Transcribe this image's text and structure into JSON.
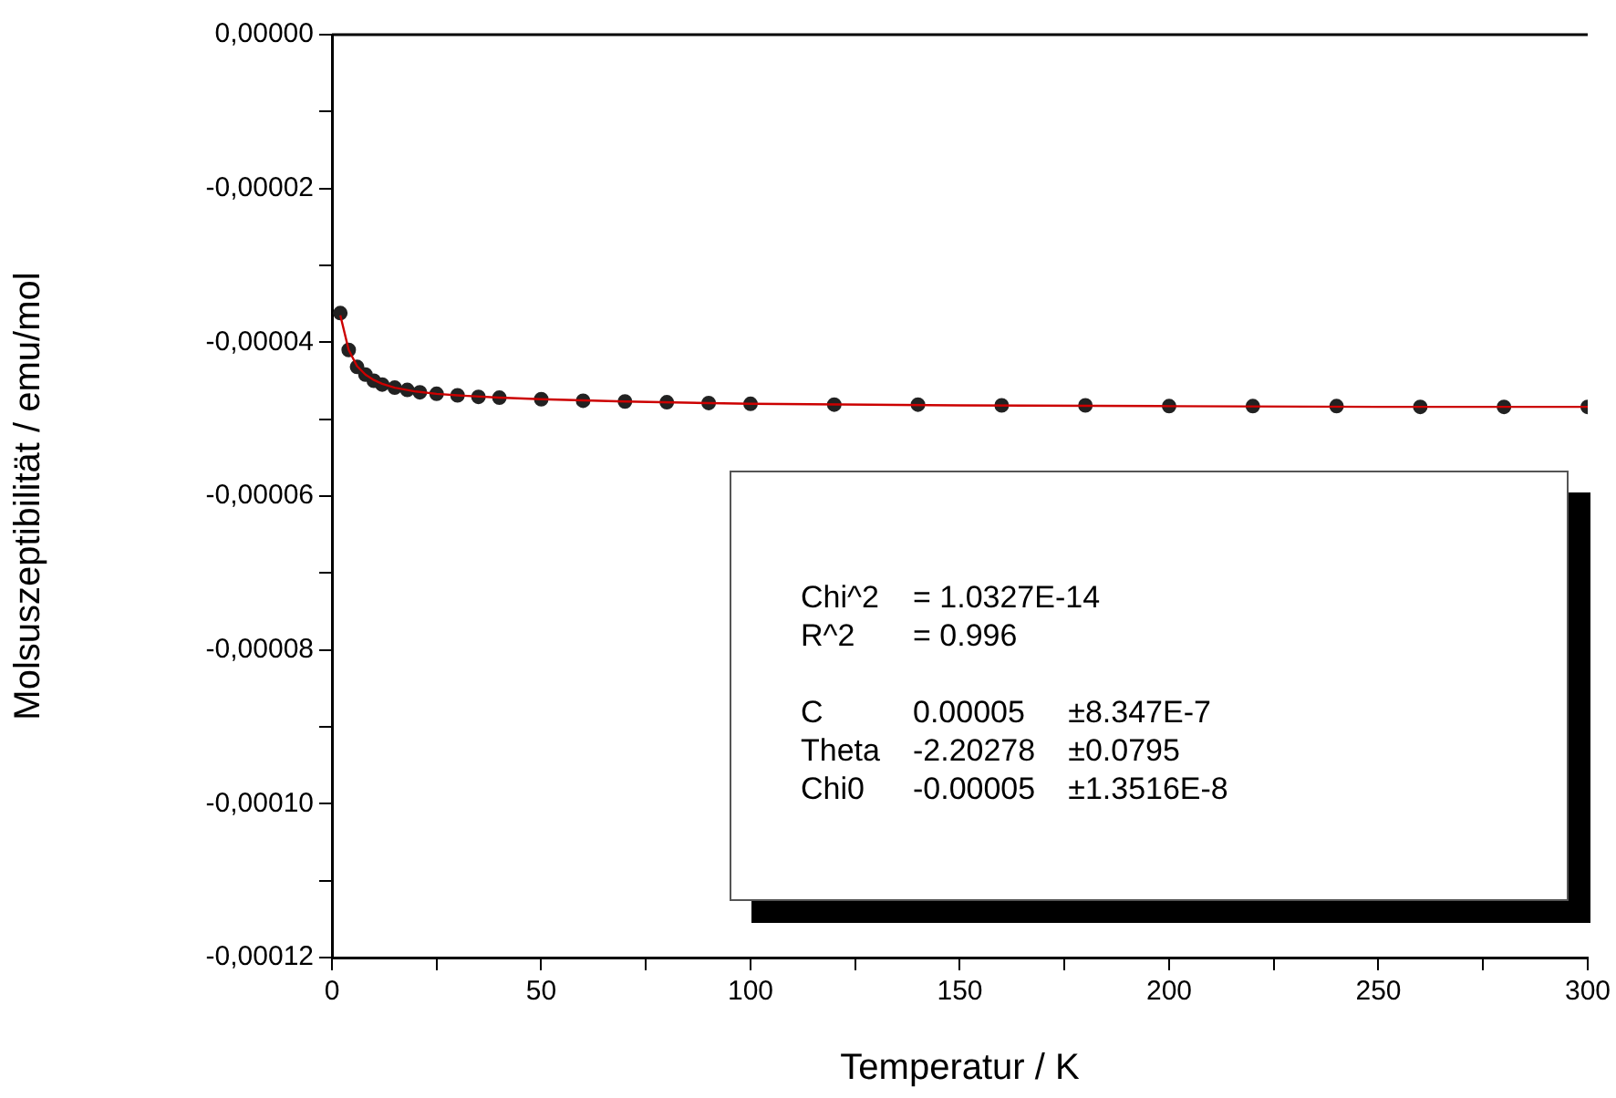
{
  "chart_data": {
    "type": "scatter",
    "xlabel": "Temperatur / K",
    "ylabel": "Molsuszeptibilität / emu/mol",
    "xlim": [
      0,
      300
    ],
    "xticks": [
      0,
      {
        "value": 25,
        "label": null
      },
      50,
      {
        "value": 75,
        "label": null
      },
      100,
      {
        "value": 125,
        "label": null
      },
      150,
      {
        "value": 175,
        "label": null
      },
      200,
      {
        "value": 225,
        "label": null
      },
      250,
      {
        "value": 275,
        "label": null
      },
      300
    ],
    "ylim": [
      -0.00012,
      0
    ],
    "yticks": [
      {
        "value": -0.00012,
        "label": "-0,00012"
      },
      {
        "value": -0.00011,
        "label": null
      },
      {
        "value": -0.0001,
        "label": "-0,00010"
      },
      {
        "value": -9e-05,
        "label": null
      },
      {
        "value": -8e-05,
        "label": "-0,00008"
      },
      {
        "value": -7e-05,
        "label": null
      },
      {
        "value": -6e-05,
        "label": "-0,00006"
      },
      {
        "value": -5e-05,
        "label": null
      },
      {
        "value": -4e-05,
        "label": "-0,00004"
      },
      {
        "value": -3e-05,
        "label": null
      },
      {
        "value": -2e-05,
        "label": "-0,00002"
      },
      {
        "value": -1e-05,
        "label": null
      },
      {
        "value": 0,
        "label": "0,00000"
      }
    ],
    "marker": "circle",
    "legend": false,
    "grid": false,
    "series": [
      {
        "type": "scatter",
        "color": "#222222",
        "x": [
          2,
          4,
          6,
          8,
          10,
          12,
          15,
          18,
          21,
          25,
          30,
          35,
          40,
          50,
          60,
          70,
          80,
          90,
          100,
          120,
          140,
          160,
          180,
          200,
          220,
          240,
          260,
          280,
          300
        ],
        "values": [
          -3.62e-05,
          -4.1e-05,
          -4.32e-05,
          -4.42e-05,
          -4.5e-05,
          -4.55e-05,
          -4.59e-05,
          -4.62e-05,
          -4.65e-05,
          -4.67e-05,
          -4.69e-05,
          -4.71e-05,
          -4.72e-05,
          -4.74e-05,
          -4.76e-05,
          -4.77e-05,
          -4.78e-05,
          -4.79e-05,
          -4.8e-05,
          -4.81e-05,
          -4.81e-05,
          -4.82e-05,
          -4.82e-05,
          -4.83e-05,
          -4.83e-05,
          -4.83e-05,
          -4.84e-05,
          -4.84e-05,
          -4.84e-05
        ]
      },
      {
        "type": "line",
        "color": "#cc0000",
        "marker": "none",
        "x": [
          2,
          4,
          6,
          8,
          10,
          12,
          15,
          20,
          25,
          30,
          40,
          50,
          70,
          100,
          150,
          200,
          250,
          300
        ],
        "values": [
          -3.65e-05,
          -4.1e-05,
          -4.31e-05,
          -4.42e-05,
          -4.49e-05,
          -4.54e-05,
          -4.59e-05,
          -4.64e-05,
          -4.67e-05,
          -4.69e-05,
          -4.72e-05,
          -4.74e-05,
          -4.77e-05,
          -4.8e-05,
          -4.82e-05,
          -4.83e-05,
          -4.84e-05,
          -4.84e-05
        ]
      }
    ],
    "annotations": [
      "Chi^2",
      "= 1.0327E-14",
      "R^2",
      "= 0.996",
      "C",
      "0.00005",
      "±8.347E-7",
      "Theta",
      "-2.20278",
      "±0.0795",
      "Chi0",
      "-0.00005",
      "±1.3516E-8"
    ]
  }
}
